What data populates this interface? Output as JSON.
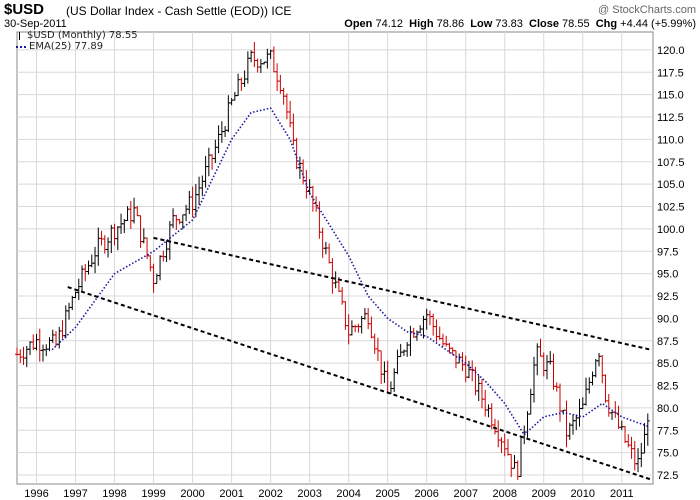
{
  "header": {
    "symbol": "$USD",
    "description": "(US Dollar Index - Cash Settle (EOD))  ICE",
    "date": "30-Sep-2011",
    "watermark": "@ StockCharts.com",
    "open_label": "Open",
    "open": "74.12",
    "high_label": "High",
    "high": "78.86",
    "low_label": "Low",
    "low": "73.83",
    "close_label": "Close",
    "close": "78.55",
    "chg_label": "Chg",
    "chg": "+4.44 (+5.99%)"
  },
  "legend": {
    "price_label": "$USD (Monthly) 78.55",
    "ema_label": "EMA(25) 77.89"
  },
  "colors": {
    "up_bar": "#000000",
    "down_bar": "#cc0000",
    "ema": "#1a1aa0",
    "grid": "#d8d8d8",
    "trendline": "#000000"
  },
  "chart_data": {
    "type": "line",
    "frequency": "monthly",
    "ylim": [
      71.5,
      122
    ],
    "y_ticks": [
      72.5,
      75.0,
      77.5,
      80.0,
      82.5,
      85.0,
      87.5,
      90.0,
      92.5,
      95.0,
      97.5,
      100.0,
      102.5,
      105.0,
      107.5,
      110.0,
      112.5,
      115.0,
      117.5,
      120.0
    ],
    "x_ticks": [
      "1996",
      "1997",
      "1998",
      "1999",
      "2000",
      "2001",
      "2002",
      "2003",
      "2004",
      "2005",
      "2006",
      "2007",
      "2008",
      "2009",
      "2010",
      "2011"
    ],
    "grid": true,
    "close_price_series": {
      "name": "$USD (Monthly)",
      "points": [
        [
          1995.5,
          86.0
        ],
        [
          1996.0,
          87.5
        ],
        [
          1996.5,
          87.0
        ],
        [
          1997.0,
          93.0
        ],
        [
          1997.5,
          97.5
        ],
        [
          1998.0,
          100.0
        ],
        [
          1998.5,
          102.0
        ],
        [
          1999.0,
          94.5
        ],
        [
          1999.5,
          101.0
        ],
        [
          2000.0,
          103.0
        ],
        [
          2000.5,
          108.0
        ],
        [
          2001.0,
          114.0
        ],
        [
          2001.5,
          119.0
        ],
        [
          2002.0,
          119.0
        ],
        [
          2002.3,
          116.0
        ],
        [
          2002.6,
          108.5
        ],
        [
          2003.0,
          104.0
        ],
        [
          2003.5,
          96.0
        ],
        [
          2004.0,
          88.5
        ],
        [
          2004.5,
          90.5
        ],
        [
          2005.0,
          81.5
        ],
        [
          2005.5,
          88.0
        ],
        [
          2006.0,
          90.5
        ],
        [
          2006.5,
          86.5
        ],
        [
          2007.0,
          84.5
        ],
        [
          2007.5,
          80.5
        ],
        [
          2008.0,
          76.0
        ],
        [
          2008.3,
          72.5
        ],
        [
          2008.8,
          86.0
        ],
        [
          2009.2,
          84.0
        ],
        [
          2009.6,
          77.0
        ],
        [
          2010.0,
          80.0
        ],
        [
          2010.4,
          87.0
        ],
        [
          2010.6,
          81.0
        ],
        [
          2011.0,
          77.0
        ],
        [
          2011.4,
          73.5
        ],
        [
          2011.7,
          78.55
        ]
      ]
    },
    "ema_series": {
      "name": "EMA(25)",
      "points": [
        [
          1996.4,
          86.5
        ],
        [
          1997.0,
          89.0
        ],
        [
          1998.0,
          95.0
        ],
        [
          1999.0,
          97.5
        ],
        [
          2000.0,
          101.0
        ],
        [
          2001.0,
          110.0
        ],
        [
          2001.5,
          113.0
        ],
        [
          2002.0,
          113.5
        ],
        [
          2002.5,
          110.0
        ],
        [
          2003.0,
          104.0
        ],
        [
          2004.0,
          97.0
        ],
        [
          2004.5,
          92.5
        ],
        [
          2005.0,
          90.0
        ],
        [
          2005.5,
          88.5
        ],
        [
          2006.0,
          88.0
        ],
        [
          2006.5,
          86.5
        ],
        [
          2007.0,
          85.0
        ],
        [
          2007.5,
          83.0
        ],
        [
          2008.0,
          80.5
        ],
        [
          2008.5,
          77.0
        ],
        [
          2009.0,
          79.0
        ],
        [
          2009.5,
          79.5
        ],
        [
          2010.0,
          79.0
        ],
        [
          2010.5,
          80.5
        ],
        [
          2011.0,
          79.0
        ],
        [
          2011.7,
          77.89
        ]
      ]
    },
    "trendlines": [
      {
        "name": "upper",
        "start": [
          1999.0,
          99.0
        ],
        "end": [
          2011.75,
          86.5
        ]
      },
      {
        "name": "lower",
        "start": [
          1996.8,
          93.5
        ],
        "end": [
          2011.75,
          72.0
        ]
      }
    ]
  }
}
